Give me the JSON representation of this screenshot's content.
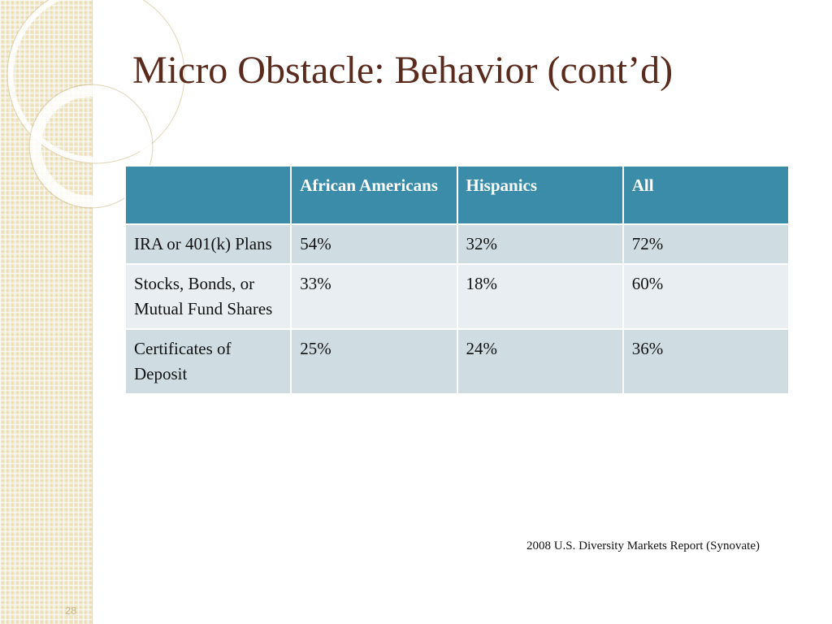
{
  "slide": {
    "title": "Micro Obstacle: Behavior (cont’d)",
    "source": "2008 U.S. Diversity Markets Report (Synovate)",
    "page_number": "28"
  },
  "table": {
    "headers": [
      "",
      "African Americans",
      "Hispanics",
      "All"
    ],
    "rows": [
      [
        "IRA or 401(k) Plans",
        "54%",
        "32%",
        "72%"
      ],
      [
        "Stocks, Bonds, or Mutual Fund Shares",
        "33%",
        "18%",
        "60%"
      ],
      [
        "Certificates of Deposit",
        "25%",
        "24%",
        "36%"
      ]
    ]
  },
  "colors": {
    "title": "#5a2a1c",
    "header_bg": "#3b8ca8",
    "row_odd_bg": "#cfdde2",
    "row_even_bg": "#e8eef1",
    "side_panel_bg": "#f5e9c6"
  }
}
